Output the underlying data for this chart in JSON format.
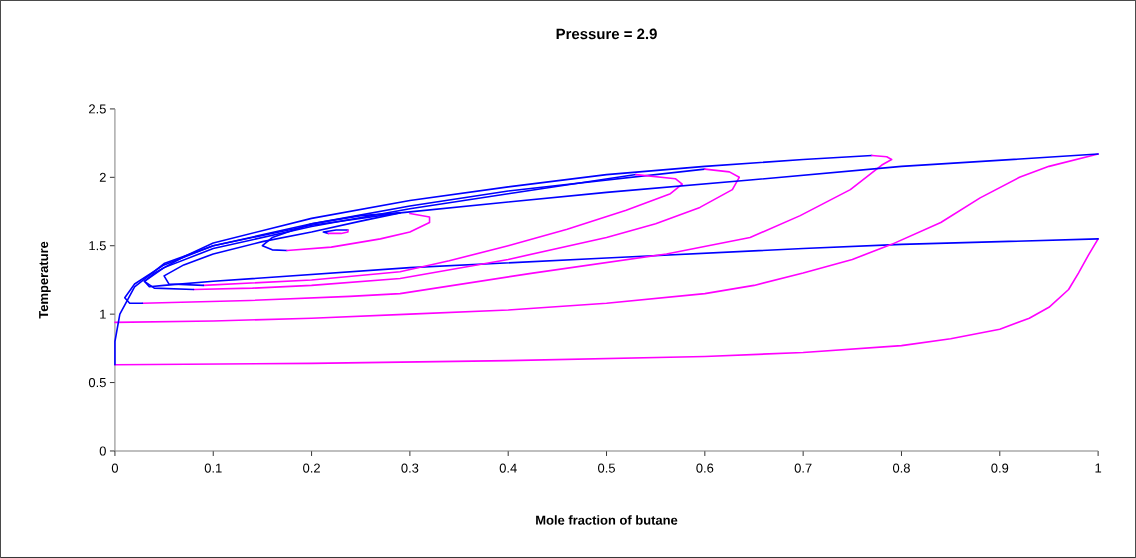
{
  "chart_data": {
    "type": "line",
    "title": "Pressure = 2.9",
    "xlabel": "Mole fraction of butane",
    "ylabel": "Temperature",
    "xlim": [
      0,
      1
    ],
    "ylim": [
      0,
      2.5
    ],
    "xticks": [
      0,
      0.1,
      0.2,
      0.3,
      0.4,
      0.5,
      0.6,
      0.7,
      0.8,
      0.9,
      1
    ],
    "yticks": [
      0,
      0.5,
      1,
      1.5,
      2,
      2.5
    ],
    "grid": false,
    "marker": "none",
    "line_style": "solid",
    "series": [
      {
        "color": "#ff00ff",
        "x": [
          0,
          0.2,
          0.4,
          0.6,
          0.7,
          0.8,
          0.85,
          0.9,
          0.93,
          0.95,
          0.97,
          0.98,
          0.99,
          1
        ],
        "values": [
          0.63,
          0.64,
          0.66,
          0.69,
          0.72,
          0.77,
          0.82,
          0.89,
          0.97,
          1.05,
          1.18,
          1.3,
          1.43,
          1.55
        ]
      },
      {
        "color": "#0000ff",
        "x": [
          1,
          0.8,
          0.7,
          0.5,
          0.3,
          0.1,
          0.05,
          0.035,
          0.03,
          0.04,
          0.07,
          0.1,
          0.2,
          0.3,
          0.4,
          0.5,
          0.6,
          0.7,
          0.77
        ],
        "values": [
          1.55,
          1.51,
          1.48,
          1.41,
          1.34,
          1.24,
          1.21,
          1.2,
          1.24,
          1.3,
          1.42,
          1.52,
          1.7,
          1.83,
          1.93,
          2.02,
          2.08,
          2.13,
          2.16
        ]
      },
      {
        "color": "#ff00ff",
        "x": [
          0.77,
          0.785,
          0.79,
          0.78,
          0.748,
          0.697,
          0.646,
          0.561,
          0.425,
          0.29,
          0.239,
          0.137,
          0.028
        ],
        "values": [
          2.16,
          2.15,
          2.13,
          2.09,
          1.91,
          1.72,
          1.56,
          1.44,
          1.3,
          1.15,
          1.13,
          1.1,
          1.08
        ]
      },
      {
        "color": "#0000ff",
        "x": [
          0.028,
          0.015,
          0.01,
          0.02,
          0.05,
          0.1,
          0.2,
          0.3,
          0.4,
          0.5,
          0.6
        ],
        "values": [
          1.08,
          1.08,
          1.12,
          1.22,
          1.36,
          1.5,
          1.66,
          1.79,
          1.9,
          1.98,
          2.06
        ]
      },
      {
        "color": "#ff00ff",
        "x": [
          0.6,
          0.625,
          0.635,
          0.628,
          0.595,
          0.55,
          0.5,
          0.4,
          0.29,
          0.2,
          0.14,
          0.08
        ],
        "values": [
          2.06,
          2.04,
          2.0,
          1.91,
          1.78,
          1.66,
          1.56,
          1.4,
          1.26,
          1.21,
          1.19,
          1.18
        ]
      },
      {
        "color": "#0000ff",
        "x": [
          0.08,
          0.04,
          0.03,
          0.05,
          0.1,
          0.2,
          0.3,
          0.4,
          0.53
        ],
        "values": [
          1.18,
          1.19,
          1.24,
          1.34,
          1.48,
          1.64,
          1.77,
          1.88,
          2.02
        ]
      },
      {
        "color": "#ff00ff",
        "x": [
          0.53,
          0.57,
          0.577,
          0.565,
          0.52,
          0.46,
          0.4,
          0.34,
          0.29,
          0.2,
          0.09
        ],
        "values": [
          2.02,
          1.99,
          1.95,
          1.88,
          1.76,
          1.62,
          1.5,
          1.39,
          1.31,
          1.25,
          1.21
        ]
      },
      {
        "color": "#0000ff",
        "x": [
          0.09,
          0.055,
          0.05,
          0.07,
          0.1,
          0.15,
          0.2,
          0.25,
          0.29
        ],
        "values": [
          1.21,
          1.22,
          1.28,
          1.36,
          1.44,
          1.53,
          1.6,
          1.68,
          1.74
        ]
      },
      {
        "color": "#0000ff",
        "x": [
          0.29,
          0.25,
          0.2,
          0.16,
          0.15,
          0.16,
          0.175
        ],
        "values": [
          1.74,
          1.72,
          1.66,
          1.56,
          1.5,
          1.47,
          1.465
        ]
      },
      {
        "color": "#ff00ff",
        "x": [
          0.175,
          0.22,
          0.27,
          0.3,
          0.32,
          0.32,
          0.3
        ],
        "values": [
          1.465,
          1.49,
          1.55,
          1.6,
          1.67,
          1.71,
          1.735
        ]
      },
      {
        "color": "#0000ff",
        "x": [
          0.237,
          0.225,
          0.212,
          0.217
        ],
        "values": [
          1.615,
          1.615,
          1.6,
          1.59
        ]
      },
      {
        "color": "#ff00ff",
        "x": [
          0.217,
          0.23,
          0.237,
          0.237
        ],
        "values": [
          1.59,
          1.59,
          1.6,
          1.615
        ]
      },
      {
        "color": "#ff00ff",
        "x": [
          0,
          0.1,
          0.2,
          0.3,
          0.4,
          0.5,
          0.6,
          0.65,
          0.7,
          0.75,
          0.79,
          0.84,
          0.88,
          0.92,
          0.95,
          1
        ],
        "values": [
          0.94,
          0.95,
          0.97,
          1.0,
          1.03,
          1.08,
          1.15,
          1.21,
          1.3,
          1.4,
          1.51,
          1.67,
          1.85,
          2.0,
          2.08,
          2.17
        ]
      },
      {
        "color": "#0000ff",
        "x": [
          1,
          0.8,
          0.646,
          0.5,
          0.4,
          0.29,
          0.2,
          0.1,
          0.05,
          0.02,
          0.005,
          0,
          0
        ],
        "values": [
          2.17,
          2.08,
          1.98,
          1.89,
          1.82,
          1.74,
          1.65,
          1.5,
          1.37,
          1.2,
          1.0,
          0.8,
          0.63
        ]
      }
    ]
  }
}
